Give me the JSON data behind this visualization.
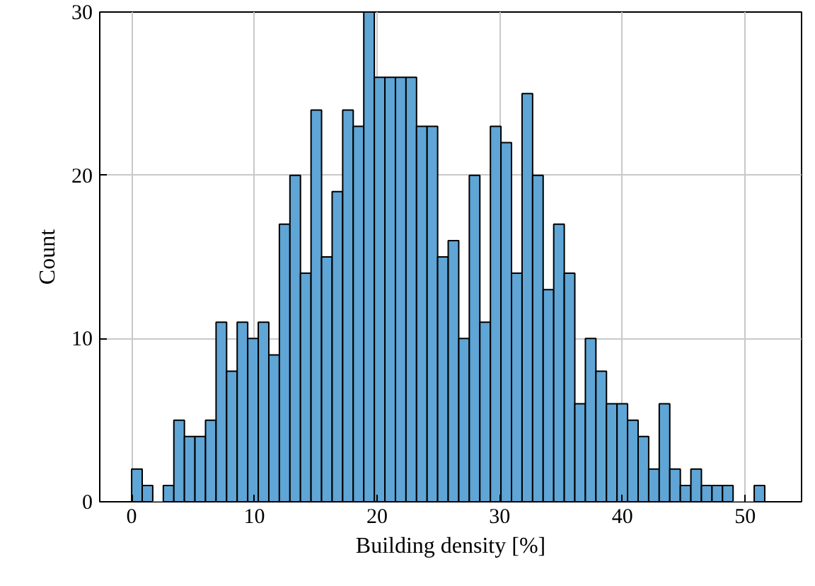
{
  "chart_data": {
    "type": "histogram",
    "xlabel": "Building density [%]",
    "ylabel": "Count",
    "bins": [
      0,
      0.86,
      1.72,
      2.58,
      3.44,
      4.3,
      5.16,
      6.02,
      6.88,
      7.74,
      8.6,
      9.46,
      10.32,
      11.18,
      12.04,
      12.9,
      13.76,
      14.62,
      15.48,
      16.34,
      17.2,
      18.06,
      18.92,
      19.78,
      20.64,
      21.5,
      22.36,
      23.22,
      24.08,
      24.94,
      25.8,
      26.66,
      27.52,
      28.38,
      29.24,
      30.1,
      30.96,
      31.82,
      32.68,
      33.54,
      34.4,
      35.26,
      36.12,
      36.98,
      37.84,
      38.7,
      39.56,
      40.42,
      41.28,
      42.14,
      43.0,
      43.86,
      44.72,
      45.58,
      46.44,
      47.3,
      48.16,
      49.02,
      49.88,
      50.74,
      51.6
    ],
    "values": [
      2,
      1,
      0,
      1,
      5,
      4,
      4,
      5,
      11,
      8,
      11,
      10,
      11,
      9,
      17,
      20,
      14,
      24,
      15,
      19,
      24,
      23,
      30,
      26,
      26,
      26,
      26,
      23,
      23,
      15,
      16,
      10,
      20,
      11,
      23,
      22,
      14,
      25,
      20,
      13,
      17,
      14,
      6,
      10,
      8,
      6,
      6,
      5,
      4,
      2,
      6,
      2,
      1,
      2,
      1,
      1,
      1,
      0,
      0,
      1
    ],
    "color": "#5fa5d5",
    "xlim": [
      -2.6,
      54.6
    ],
    "ylim": [
      0,
      30
    ],
    "xticks": [
      0,
      10,
      20,
      30,
      40,
      50
    ],
    "yticks": [
      0,
      10,
      20,
      30
    ],
    "grid": true
  }
}
